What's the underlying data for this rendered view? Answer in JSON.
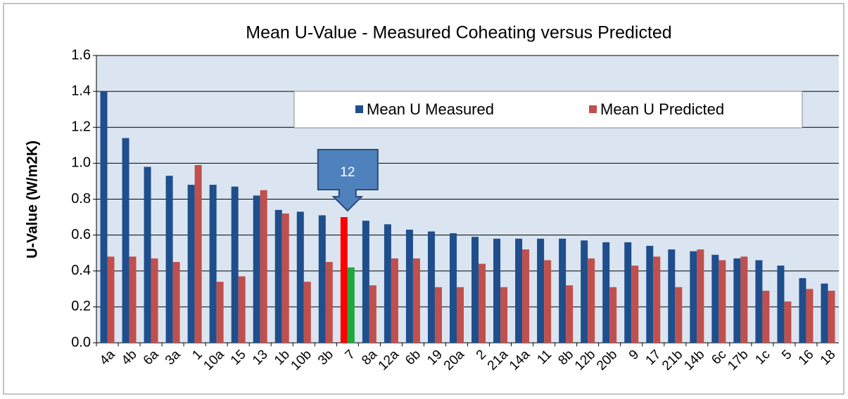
{
  "chart_data": {
    "type": "bar",
    "title": "Mean U-Value - Measured Coheating versus Predicted",
    "y_label": "U-Value (W/m2K)",
    "categories": [
      "4a",
      "4b",
      "6a",
      "3a",
      "1",
      "10a",
      "15",
      "13",
      "1b",
      "10b",
      "3b",
      "7",
      "8a",
      "12a",
      "6b",
      "19",
      "20a",
      "2",
      "21a",
      "14a",
      "11",
      "8b",
      "12b",
      "20b",
      "9",
      "17",
      "21b",
      "14b",
      "6c",
      "17b",
      "1c",
      "5",
      "16",
      "18"
    ],
    "series": [
      {
        "name": "Mean U Measured",
        "color": "#1f4e8c",
        "highlight_color": "#ff0000",
        "values": [
          1.4,
          1.14,
          0.98,
          0.93,
          0.88,
          0.88,
          0.87,
          0.82,
          0.74,
          0.73,
          0.71,
          0.7,
          0.68,
          0.66,
          0.63,
          0.62,
          0.61,
          0.59,
          0.58,
          0.58,
          0.58,
          0.58,
          0.57,
          0.56,
          0.56,
          0.54,
          0.52,
          0.51,
          0.49,
          0.47,
          0.46,
          0.43,
          0.36,
          0.33
        ]
      },
      {
        "name": "Mean U Predicted",
        "color": "#c0504d",
        "highlight_color": "#1fa83c",
        "values": [
          0.48,
          0.48,
          0.47,
          0.45,
          0.99,
          0.34,
          0.37,
          0.85,
          0.72,
          0.34,
          0.45,
          0.42,
          0.32,
          0.47,
          0.47,
          0.31,
          0.31,
          0.44,
          0.31,
          0.52,
          0.46,
          0.32,
          0.47,
          0.31,
          0.43,
          0.48,
          0.31,
          0.52,
          0.46,
          0.48,
          0.29,
          0.23,
          0.3,
          0.29
        ]
      }
    ],
    "highlight": "7",
    "annotation": {
      "text": "12",
      "category": "7"
    },
    "ylim": [
      0,
      1.6
    ],
    "yticks": [
      {
        "value": 0,
        "label": "0.0"
      },
      {
        "value": 0.2,
        "label": "0.2"
      },
      {
        "value": 0.4,
        "label": "0.4"
      },
      {
        "value": 0.6,
        "label": "0.6"
      },
      {
        "value": 0.8,
        "label": "0.8"
      },
      {
        "value": 1,
        "label": "1.0"
      },
      {
        "value": 1.2,
        "label": "1.2"
      },
      {
        "value": 1.4,
        "label": "1.4"
      },
      {
        "value": 1.6,
        "label": "1.6"
      }
    ],
    "grid": true,
    "legend": "top"
  }
}
